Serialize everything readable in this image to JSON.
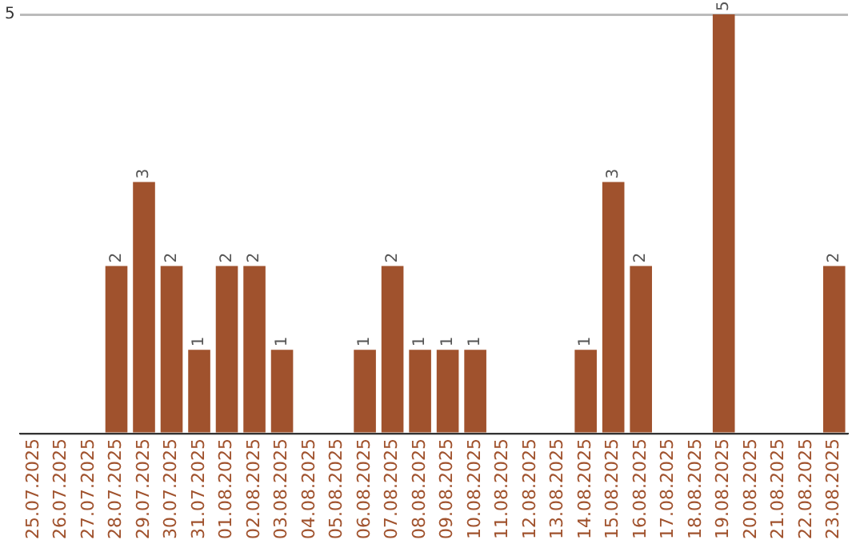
{
  "chart_data": {
    "type": "bar",
    "categories": [
      "25.07.2025",
      "26.07.2025",
      "27.07.2025",
      "28.07.2025",
      "29.07.2025",
      "30.07.2025",
      "31.07.2025",
      "01.08.2025",
      "02.08.2025",
      "03.08.2025",
      "04.08.2025",
      "05.08.2025",
      "06.08.2025",
      "07.08.2025",
      "08.08.2025",
      "09.08.2025",
      "10.08.2025",
      "11.08.2025",
      "12.08.2025",
      "13.08.2025",
      "14.08.2025",
      "15.08.2025",
      "16.08.2025",
      "17.08.2025",
      "18.08.2025",
      "19.08.2025",
      "20.08.2025",
      "21.08.2025",
      "22.08.2025",
      "23.08.2025"
    ],
    "values": [
      null,
      null,
      null,
      2,
      3,
      2,
      1,
      2,
      2,
      1,
      null,
      null,
      1,
      2,
      1,
      1,
      1,
      null,
      null,
      null,
      1,
      3,
      2,
      null,
      null,
      5,
      null,
      null,
      null,
      2
    ],
    "color": "#a0522d",
    "ylim": [
      0,
      5
    ],
    "yticks": [
      {
        "value": 0,
        "label": null
      },
      5
    ],
    "grid": "y",
    "legend": false,
    "data_labels": true
  }
}
